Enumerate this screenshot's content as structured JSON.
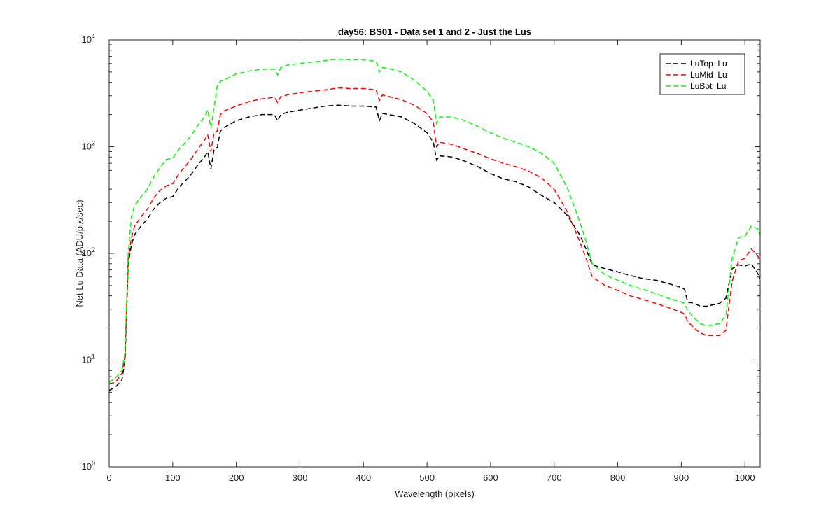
{
  "chart_data": {
    "type": "line",
    "title": "day56: BS01 - Data set 1 and 2 - Just the Lus",
    "xlabel": "Wavelength (pixels)",
    "ylabel": "Net Lu Data (ADU/pix/sec)",
    "xlim": [
      0,
      1024
    ],
    "ylim": [
      1,
      10000
    ],
    "yscale": "log",
    "x_ticks": [
      0,
      100,
      200,
      300,
      400,
      500,
      600,
      700,
      800,
      900,
      1000
    ],
    "y_ticks": [
      {
        "value": 1,
        "base": "10",
        "exp": "0"
      },
      {
        "value": 10,
        "base": "10",
        "exp": "1"
      },
      {
        "value": 100,
        "base": "10",
        "exp": "2"
      },
      {
        "value": 1000,
        "base": "10",
        "exp": "3"
      },
      {
        "value": 10000,
        "base": "10",
        "exp": "4"
      }
    ],
    "grid": false,
    "legend_position": "top-right",
    "line_style": "dashed",
    "x": [
      0,
      10,
      20,
      25,
      30,
      35,
      40,
      50,
      60,
      70,
      80,
      90,
      100,
      110,
      120,
      130,
      140,
      150,
      155,
      160,
      165,
      170,
      175,
      180,
      200,
      220,
      240,
      260,
      265,
      270,
      280,
      300,
      320,
      340,
      360,
      380,
      400,
      420,
      425,
      430,
      440,
      460,
      480,
      500,
      510,
      515,
      520,
      540,
      560,
      580,
      600,
      620,
      640,
      660,
      680,
      700,
      720,
      740,
      750,
      760,
      780,
      800,
      820,
      840,
      860,
      880,
      900,
      905,
      910,
      920,
      930,
      940,
      960,
      970,
      980,
      990,
      1000,
      1010,
      1020,
      1024
    ],
    "series": [
      {
        "name": "LuTop  Lu",
        "color": "#000000",
        "values": [
          5.2,
          5.6,
          6.5,
          10,
          80,
          120,
          150,
          180,
          210,
          260,
          300,
          330,
          340,
          420,
          480,
          560,
          680,
          800,
          900,
          620,
          950,
          980,
          1400,
          1500,
          1750,
          1900,
          2000,
          2000,
          1750,
          2000,
          2100,
          2200,
          2300,
          2400,
          2450,
          2400,
          2400,
          2350,
          1750,
          2050,
          2000,
          1900,
          1650,
          1350,
          1100,
          750,
          820,
          800,
          730,
          650,
          560,
          500,
          470,
          420,
          350,
          300,
          230,
          150,
          110,
          78,
          72,
          67,
          62,
          58,
          56,
          52,
          48,
          46,
          35,
          34,
          32,
          32,
          34,
          38,
          72,
          78,
          76,
          80,
          65,
          58
        ]
      },
      {
        "name": "LuMid  Lu",
        "color": "#ff0000",
        "values": [
          6,
          6.2,
          7.5,
          11,
          90,
          140,
          180,
          220,
          260,
          330,
          390,
          430,
          450,
          560,
          660,
          780,
          960,
          1150,
          1300,
          900,
          1350,
          1400,
          2000,
          2150,
          2400,
          2650,
          2800,
          2900,
          2600,
          2950,
          3050,
          3200,
          3300,
          3400,
          3550,
          3500,
          3500,
          3400,
          2700,
          3050,
          2950,
          2750,
          2450,
          2050,
          1700,
          1000,
          1100,
          1050,
          950,
          860,
          770,
          700,
          650,
          590,
          510,
          400,
          250,
          130,
          90,
          60,
          50,
          45,
          40,
          37,
          34,
          31,
          28,
          27,
          23,
          20,
          18,
          17,
          17,
          19,
          55,
          85,
          90,
          110,
          95,
          85
        ]
      },
      {
        "name": "LuBot  Lu",
        "color": "#00ff00",
        "values": [
          6.2,
          6.8,
          8,
          12,
          100,
          220,
          280,
          340,
          400,
          520,
          640,
          760,
          780,
          950,
          1100,
          1300,
          1600,
          1900,
          2200,
          1500,
          2300,
          3700,
          4100,
          4200,
          4800,
          5100,
          5300,
          5300,
          4700,
          5500,
          5800,
          6000,
          6200,
          6400,
          6600,
          6500,
          6500,
          6300,
          5000,
          5500,
          5400,
          5000,
          4200,
          3300,
          2700,
          1650,
          1900,
          1900,
          1750,
          1550,
          1350,
          1200,
          1100,
          1000,
          870,
          700,
          420,
          200,
          130,
          80,
          63,
          56,
          50,
          46,
          42,
          38,
          35,
          34,
          29,
          25,
          22,
          21,
          22,
          26,
          90,
          140,
          145,
          180,
          170,
          150
        ]
      }
    ]
  }
}
